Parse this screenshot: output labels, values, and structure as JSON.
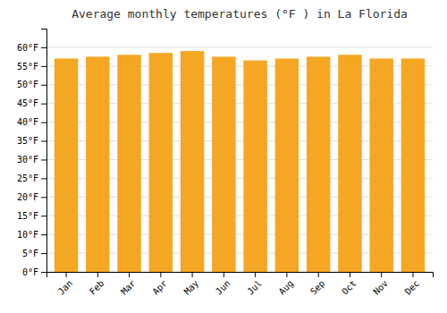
{
  "chart_data": {
    "type": "bar",
    "title": "Average monthly temperatures (°F ) in La Florida",
    "categories": [
      "Jan",
      "Feb",
      "Mar",
      "Apr",
      "May",
      "Jun",
      "Jul",
      "Aug",
      "Sep",
      "Oct",
      "Nov",
      "Dec"
    ],
    "values": [
      57.0,
      57.5,
      58.0,
      58.5,
      59.0,
      57.5,
      56.5,
      57.0,
      57.5,
      58.0,
      57.0,
      57.0
    ],
    "color": "#F5A623",
    "ylim": [
      0,
      65
    ],
    "yticks": [
      {
        "value": 0,
        "label": "0°F"
      },
      {
        "value": 5,
        "label": "5°F"
      },
      {
        "value": 10,
        "label": "10°F"
      },
      {
        "value": 15,
        "label": "15°F"
      },
      {
        "value": 20,
        "label": "20°F"
      },
      {
        "value": 25,
        "label": "25°F"
      },
      {
        "value": 30,
        "label": "30°F"
      },
      {
        "value": 35,
        "label": "35°F"
      },
      {
        "value": 40,
        "label": "40°F"
      },
      {
        "value": 45,
        "label": "45°F"
      },
      {
        "value": 50,
        "label": "50°F"
      },
      {
        "value": 55,
        "label": "55°F"
      },
      {
        "value": 60,
        "label": "60°F"
      }
    ],
    "grid": true
  }
}
